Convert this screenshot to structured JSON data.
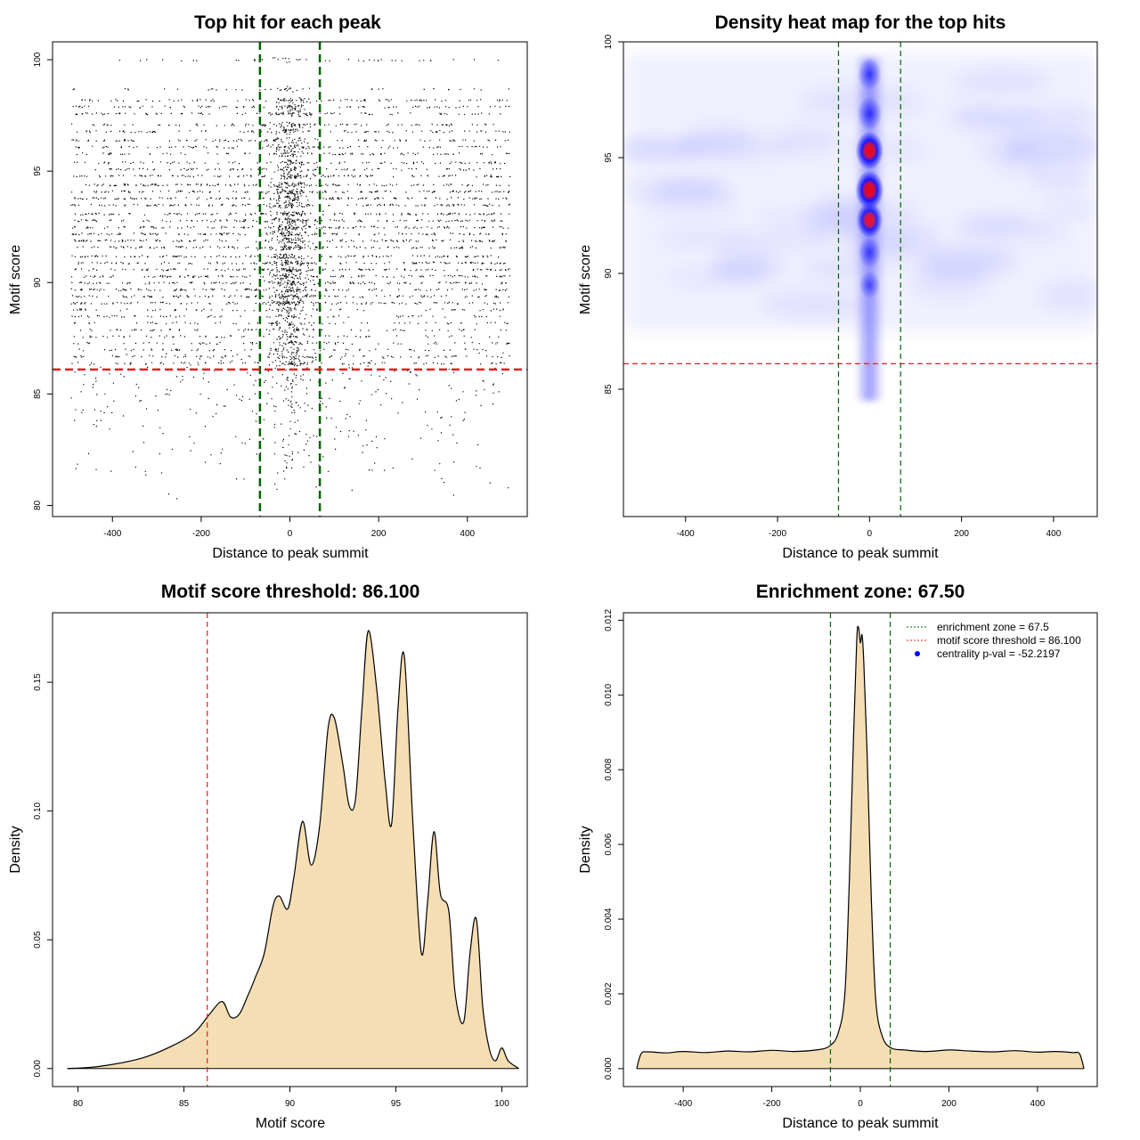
{
  "chart_data": [
    {
      "type": "scatter",
      "title": "Top hit for each peak",
      "xlabel": "Distance to peak summit",
      "ylabel": "Motif score",
      "xlim": [
        -535,
        535
      ],
      "ylim": [
        79.5,
        100.8
      ],
      "x_ticks": [
        -400,
        -200,
        0,
        200,
        400
      ],
      "x_tick_labels": [
        "-400",
        "-200",
        "0",
        "200",
        "400"
      ],
      "y_ticks": [
        80,
        85,
        90,
        95,
        100
      ],
      "y_tick_labels": [
        "80",
        "85",
        "90",
        "95",
        "100"
      ],
      "vlines": [
        -67.5,
        67.5
      ],
      "hline": 86.1,
      "x_range": [
        -495,
        495
      ],
      "score_rows": [
        100,
        98.7,
        98.2,
        97.9,
        97.6,
        97.1,
        96.8,
        96.4,
        96.1,
        95.8,
        95.4,
        95.1,
        94.8,
        94.4,
        94.1,
        93.8,
        93.5,
        93.1,
        92.8,
        92.5,
        92.2,
        91.9,
        91.6,
        91.2,
        90.9,
        90.6,
        90.3,
        90.0,
        89.7,
        89.4,
        89.1,
        88.8,
        88.5,
        88.2,
        87.9,
        87.6,
        87.3,
        87.0,
        86.7,
        86.4
      ]
    },
    {
      "type": "heatmap",
      "title": "Density heat map for the top hits",
      "xlabel": "Distance to peak summit",
      "ylabel": "Motif score",
      "xlim": [
        -535,
        495
      ],
      "ylim": [
        79.5,
        100
      ],
      "x_ticks": [
        -400,
        -200,
        0,
        200,
        400
      ],
      "x_tick_labels": [
        "-400",
        "-200",
        "0",
        "200",
        "400"
      ],
      "y_ticks": [
        85,
        90,
        95,
        100
      ],
      "y_tick_labels": [
        "85",
        "90",
        "95",
        "100"
      ],
      "vlines": [
        -67.5,
        67.5
      ],
      "hline": 86.1,
      "hotspots": [
        {
          "y": 98.6,
          "intensity": 0.6
        },
        {
          "y": 96.9,
          "intensity": 0.7
        },
        {
          "y": 95.3,
          "intensity": 0.95
        },
        {
          "y": 93.6,
          "intensity": 1.0
        },
        {
          "y": 92.3,
          "intensity": 0.8
        },
        {
          "y": 90.9,
          "intensity": 0.5
        },
        {
          "y": 89.5,
          "intensity": 0.35
        }
      ]
    },
    {
      "type": "area",
      "title": "Motif score threshold: 86.100",
      "xlabel": "Motif score",
      "ylabel": "Density",
      "xlim": [
        78.8,
        101.2
      ],
      "ylim": [
        -0.007,
        0.177
      ],
      "x_ticks": [
        80,
        85,
        90,
        95,
        100
      ],
      "x_tick_labels": [
        "80",
        "85",
        "90",
        "95",
        "100"
      ],
      "y_ticks": [
        0,
        0.05,
        0.1,
        0.15
      ],
      "y_tick_labels": [
        "0.00",
        "0.05",
        "0.10",
        "0.15"
      ],
      "vline": 86.1,
      "x": [
        79.5,
        81,
        83,
        84.5,
        85.5,
        86.2,
        86.8,
        87.2,
        87.6,
        88.0,
        88.4,
        88.8,
        89.2,
        89.5,
        89.9,
        90.2,
        90.6,
        91.0,
        91.4,
        91.8,
        92.1,
        92.5,
        92.8,
        93.1,
        93.4,
        93.7,
        94.1,
        94.5,
        94.8,
        95.1,
        95.4,
        95.8,
        96.2,
        96.5,
        96.8,
        97.1,
        97.5,
        97.8,
        98.2,
        98.5,
        98.8,
        99.1,
        99.4,
        99.7,
        100.0,
        100.3,
        100.8
      ],
      "y": [
        0,
        0.0008,
        0.004,
        0.009,
        0.014,
        0.021,
        0.026,
        0.02,
        0.021,
        0.028,
        0.036,
        0.045,
        0.063,
        0.067,
        0.062,
        0.075,
        0.096,
        0.079,
        0.094,
        0.132,
        0.136,
        0.118,
        0.102,
        0.105,
        0.14,
        0.17,
        0.147,
        0.111,
        0.095,
        0.14,
        0.16,
        0.096,
        0.045,
        0.065,
        0.092,
        0.068,
        0.061,
        0.029,
        0.018,
        0.045,
        0.058,
        0.024,
        0.008,
        0.003,
        0.008,
        0.003,
        0
      ]
    },
    {
      "type": "area",
      "title": "Enrichment zone: 67.50",
      "xlabel": "Distance to peak summit",
      "ylabel": "Density",
      "xlim": [
        -535,
        535
      ],
      "ylim": [
        -0.00048,
        0.0122
      ],
      "x_ticks": [
        -400,
        -200,
        0,
        200,
        400
      ],
      "x_tick_labels": [
        "-400",
        "-200",
        "0",
        "200",
        "400"
      ],
      "y_ticks": [
        0,
        0.002,
        0.004,
        0.006,
        0.008,
        0.01,
        0.012
      ],
      "y_tick_labels": [
        "0.000",
        "0.002",
        "0.004",
        "0.006",
        "0.008",
        "0.010",
        "0.012"
      ],
      "vlines": [
        -67.5,
        67.5
      ],
      "x": [
        -505,
        -495,
        -480,
        -440,
        -400,
        -350,
        -300,
        -250,
        -200,
        -150,
        -100,
        -70,
        -50,
        -35,
        -25,
        -15,
        -8,
        -4,
        0,
        4,
        8,
        15,
        25,
        35,
        50,
        70,
        100,
        150,
        200,
        250,
        300,
        350,
        400,
        440,
        480,
        495,
        505
      ],
      "y": [
        0,
        0.0004,
        0.00045,
        0.00042,
        0.00046,
        0.00043,
        0.00047,
        0.00045,
        0.00049,
        0.00046,
        0.0005,
        0.0006,
        0.00095,
        0.002,
        0.005,
        0.009,
        0.0115,
        0.0118,
        0.0114,
        0.0116,
        0.0108,
        0.0085,
        0.0045,
        0.0018,
        0.00085,
        0.00055,
        0.0005,
        0.00046,
        0.0005,
        0.00047,
        0.00045,
        0.00048,
        0.00044,
        0.00046,
        0.00043,
        0.0004,
        0
      ],
      "legend": {
        "placement": "top-right",
        "entries": [
          {
            "label": "enrichment zone = 67.5",
            "color": "#006400",
            "style": "dotted"
          },
          {
            "label": "motif score threshold = 86.100",
            "color": "#dd2222",
            "style": "dotted"
          },
          {
            "label": "centrality p-val = -52.2197",
            "color": "#0000ff",
            "style": "point"
          }
        ]
      }
    }
  ],
  "colors": {
    "fill": "#f5deb3",
    "green_line": "#006400",
    "red_line": "#dd2222",
    "heat_blue": "#0000ff",
    "heat_red": "#ff0000"
  }
}
